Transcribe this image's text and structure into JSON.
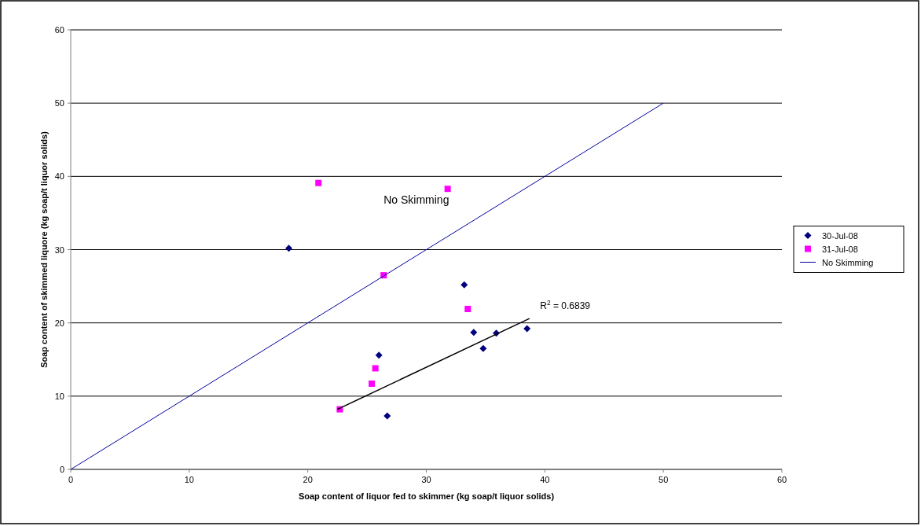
{
  "chart_data": {
    "type": "scatter",
    "xlabel": "Soap content of liquor fed to skimmer (kg soap/t liquor solids)",
    "ylabel": "Soap content of skimmed liquore (kg soap/t liquor solids)",
    "xlim": [
      0,
      60
    ],
    "ylim": [
      0,
      60
    ],
    "xticks": [
      0,
      10,
      20,
      30,
      40,
      50,
      60
    ],
    "yticks": [
      0,
      10,
      20,
      30,
      40,
      50,
      60
    ],
    "grid": "y",
    "legend": "right",
    "series": [
      {
        "name": "30-Jul-08",
        "marker": "diamond",
        "color": "#000080",
        "x": [
          18.4,
          33.2,
          34.0,
          35.9,
          38.5,
          34.8,
          26.0,
          26.7
        ],
        "values": [
          30.2,
          25.2,
          18.7,
          18.6,
          19.2,
          16.5,
          15.6,
          7.3
        ]
      },
      {
        "name": "31-Jul-08",
        "marker": "square",
        "color": "#ff00ff",
        "x": [
          20.9,
          31.8,
          26.4,
          33.5,
          25.7,
          25.4,
          22.7
        ],
        "values": [
          39.1,
          38.3,
          26.5,
          21.9,
          13.8,
          11.7,
          8.2
        ]
      },
      {
        "name": "No Skimming",
        "type": "line",
        "marker": "none",
        "color": "#0000a0",
        "x": [
          0,
          50
        ],
        "values": [
          0,
          50
        ]
      },
      {
        "type": "line",
        "marker": "none",
        "color": "#000000",
        "x": [
          22.5,
          38.7
        ],
        "values": [
          8.2,
          20.6
        ]
      }
    ],
    "annotations": [
      "No Skimming",
      "R$^{2}$ = 0.6839"
    ]
  }
}
